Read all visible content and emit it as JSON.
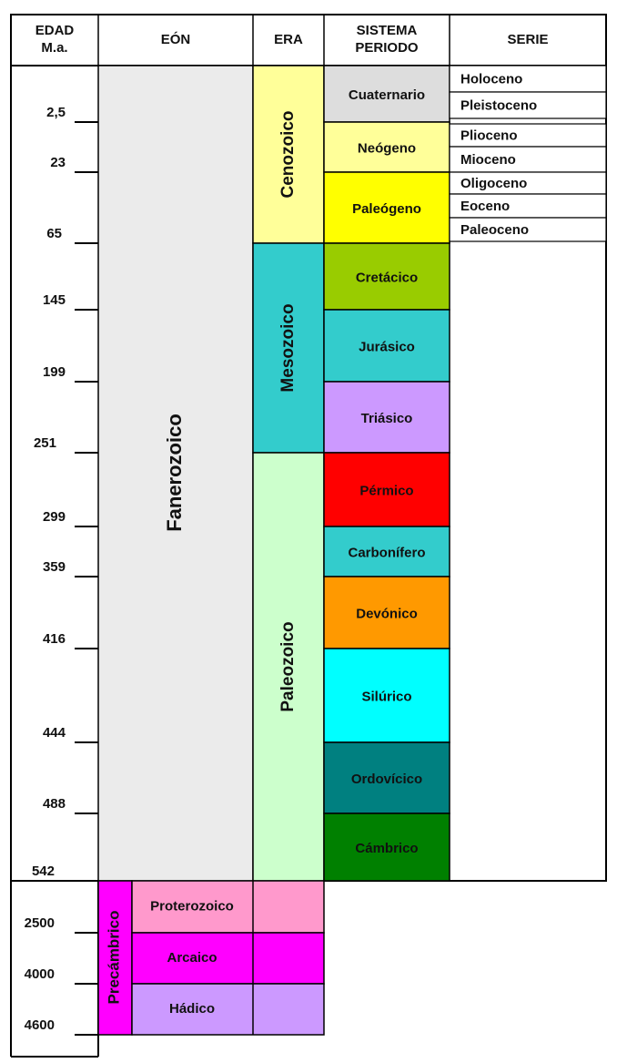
{
  "headers": {
    "edad_line1": "EDAD",
    "edad_line2": "M.a.",
    "eon": "EÓN",
    "era": "ERA",
    "periodo_line1": "SISTEMA",
    "periodo_line2": "PERIODO",
    "serie": "SERIE"
  },
  "ages": [
    "2,5",
    "23",
    "65",
    "145",
    "199",
    "251",
    "299",
    "359",
    "416",
    "444",
    "488",
    "542",
    "2500",
    "4000",
    "4600"
  ],
  "eons": [
    {
      "key": "fanerozoico",
      "label": "Fanerozoico",
      "color": "#ebebeb"
    },
    {
      "key": "precambrico",
      "label": "Precámbrico",
      "color": "#ff00ff"
    }
  ],
  "eras": [
    {
      "key": "cenozoico",
      "label": "Cenozoico",
      "color": "#ffff99"
    },
    {
      "key": "mesozoico",
      "label": "Mesozoico",
      "color": "#33cccc"
    },
    {
      "key": "paleozoico",
      "label": "Paleozoico",
      "color": "#ccffcc"
    },
    {
      "key": "proterozoico",
      "label": "Proterozoico",
      "color": "#ff99cc"
    },
    {
      "key": "arcaico",
      "label": "Arcaico",
      "color": "#ff00ff"
    },
    {
      "key": "hadico",
      "label": "Hádico",
      "color": "#cc99ff"
    }
  ],
  "periods": [
    {
      "key": "cuaternario",
      "label": "Cuaternario",
      "color": "#dddddd"
    },
    {
      "key": "neogeno",
      "label": "Neógeno",
      "color": "#ffff99"
    },
    {
      "key": "paleogeno",
      "label": "Paleógeno",
      "color": "#ffff00"
    },
    {
      "key": "cretacico",
      "label": "Cretácico",
      "color": "#99cc00"
    },
    {
      "key": "jurasico",
      "label": "Jurásico",
      "color": "#33cccc"
    },
    {
      "key": "triasico",
      "label": "Triásico",
      "color": "#cc99ff"
    },
    {
      "key": "permico",
      "label": "Pérmico",
      "color": "#ff0000"
    },
    {
      "key": "carbonifero",
      "label": "Carbonífero",
      "color": "#33cccc"
    },
    {
      "key": "devonico",
      "label": "Devónico",
      "color": "#ff9900"
    },
    {
      "key": "silurico",
      "label": "Silúrico",
      "color": "#00ffff"
    },
    {
      "key": "ordovicico",
      "label": "Ordovícico",
      "color": "#008080"
    },
    {
      "key": "cambrico",
      "label": "Cámbrico",
      "color": "#008000"
    }
  ],
  "series": [
    {
      "key": "holoceno",
      "label": "Holoceno"
    },
    {
      "key": "pleistoceno",
      "label": "Pleistoceno"
    },
    {
      "key": "plioceno",
      "label": "Plioceno"
    },
    {
      "key": "mioceno",
      "label": "Mioceno"
    },
    {
      "key": "oligoceno",
      "label": "Oligoceno"
    },
    {
      "key": "eoceno",
      "label": "Eoceno"
    },
    {
      "key": "paleoceno",
      "label": "Paleoceno"
    }
  ]
}
